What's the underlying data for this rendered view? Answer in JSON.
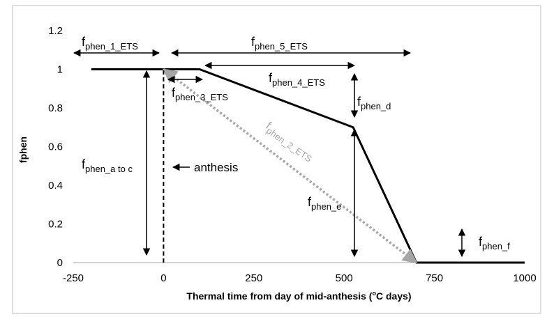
{
  "chart_data": {
    "type": "line",
    "x_label": {
      "parts": [
        "Thermal time from day of mid-anthesis (",
        "o",
        "C days)"
      ]
    },
    "y_label": "fphen",
    "xlim": [
      -250,
      1000
    ],
    "xticks": [
      -250,
      0,
      250,
      500,
      750,
      1000
    ],
    "ylim": [
      0,
      1.2
    ],
    "yticks": [
      0,
      0.2,
      0.4,
      0.6,
      0.8,
      1,
      1.2
    ],
    "series": [
      {
        "color": "#000000",
        "style": "solid",
        "x": [
          -200,
          100,
          525,
          700,
          1000
        ],
        "values": [
          1,
          1,
          0.7,
          0,
          0
        ]
      },
      {
        "color": "#a6a6a6",
        "style": "dotted",
        "arrows": true,
        "x": [
          0,
          700
        ],
        "values": [
          1,
          0
        ]
      },
      {
        "color": "#000000",
        "style": "dashed",
        "x": [
          0,
          0
        ],
        "values": [
          0,
          1
        ]
      }
    ],
    "annotations": {
      "phen_1": {
        "main": "f",
        "sub": "phen_1_ETS"
      },
      "phen_5": {
        "main": "f",
        "sub": "phen_5_ETS"
      },
      "phen_4": {
        "main": "f",
        "sub": "phen_4_ETS"
      },
      "phen_3": {
        "main": "f",
        "sub": "phen_3_ETS"
      },
      "phen_d": {
        "main": "f",
        "sub": "phen_d"
      },
      "phen_2": {
        "main": "f",
        "sub": "phen_2_ETS"
      },
      "phen_ac": {
        "main": "f",
        "sub": "phen_a to c"
      },
      "phen_e": {
        "main": "f",
        "sub": "phen_e"
      },
      "phen_f": {
        "main": "f",
        "sub": "phen_f"
      },
      "anthesis": "anthesis"
    }
  }
}
